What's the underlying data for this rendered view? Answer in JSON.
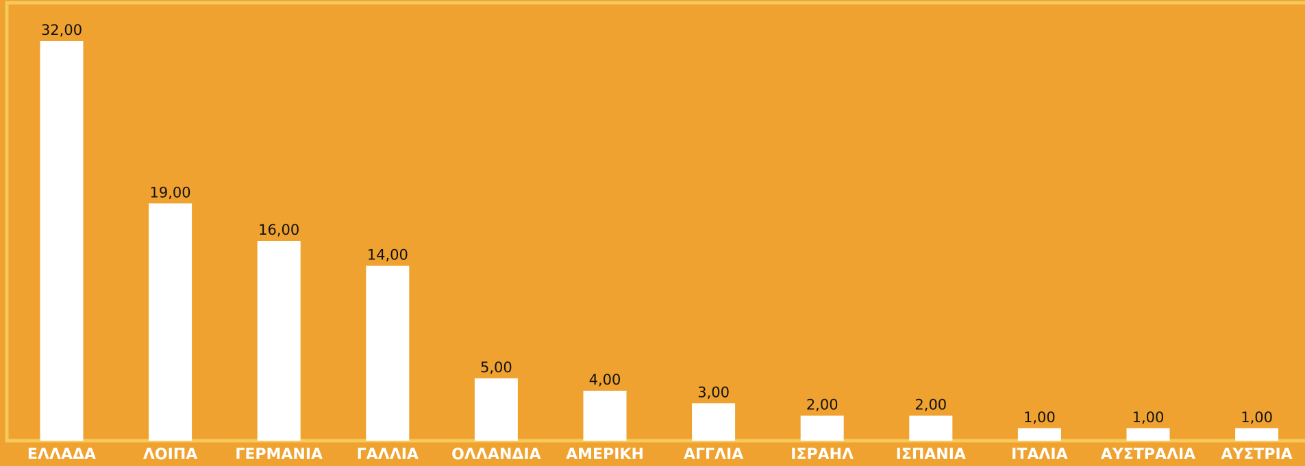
{
  "chart_data": {
    "type": "bar",
    "categories": [
      "ΕΛΛΑΔΑ",
      "ΛΟΙΠΑ",
      "ΓΕΡΜΑΝΙΑ",
      "ΓΑΛΛΙΑ",
      "ΟΛΛΑΝΔΙΑ",
      "ΑΜΕΡΙΚΗ",
      "ΑΓΓΛΙΑ",
      "ΙΣΡΑΗΛ",
      "ΙΣΠΑΝΙΑ",
      "ΙΤΑΛΙΑ",
      "ΑΥΣΤΡΑΛΙΑ",
      "ΑΥΣΤΡΙΑ"
    ],
    "values": [
      32,
      19,
      16,
      14,
      5,
      4,
      3,
      2,
      2,
      1,
      1,
      1
    ],
    "value_labels": [
      "32,00",
      "19,00",
      "16,00",
      "14,00",
      "5,00",
      "4,00",
      "3,00",
      "2,00",
      "2,00",
      "1,00",
      "1,00",
      "1,00"
    ],
    "title": "",
    "xlabel": "",
    "ylabel": "",
    "ylim": [
      0,
      32
    ],
    "grid": false,
    "legend": "none"
  },
  "colors": {
    "background": "#EFA230",
    "frame": "#F7C85A",
    "bar": "#FFFFFF",
    "value_label": "#111111",
    "category_label": "#FFFFFF"
  }
}
